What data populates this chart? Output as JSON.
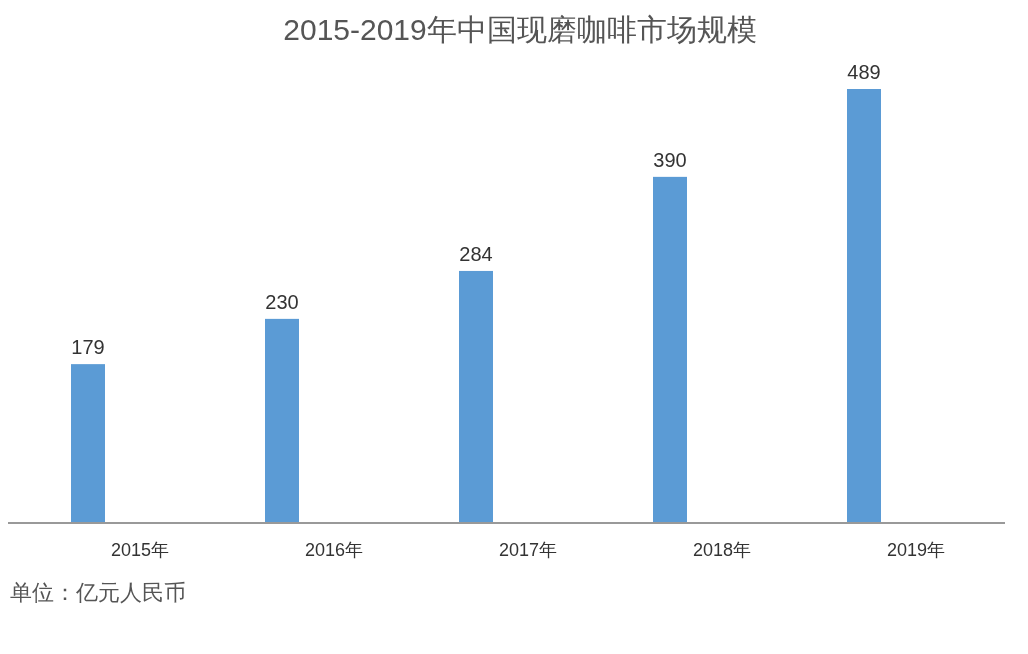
{
  "chart_data": {
    "type": "bar",
    "title": "2015-2019年中国现磨咖啡市场规模",
    "categories": [
      "2015年",
      "2016年",
      "2017年",
      "2018年",
      "2019年"
    ],
    "values": [
      179,
      230,
      284,
      390,
      489
    ],
    "color": "#5b9bd5",
    "data_labels": true,
    "annotations": [
      "单位：亿元人民币"
    ]
  }
}
